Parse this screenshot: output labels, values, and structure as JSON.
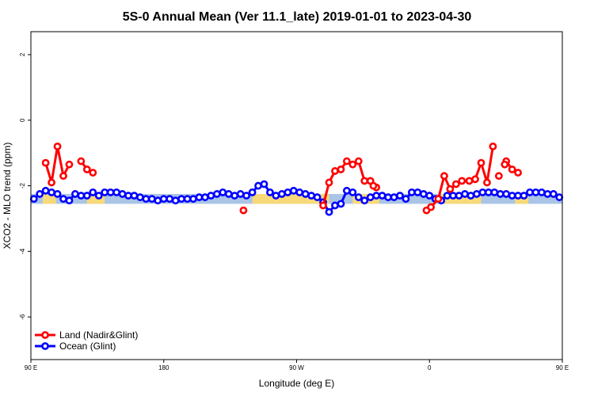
{
  "chart_data": {
    "type": "line",
    "title": "5S-0 Annual Mean (Ver 11.1_late)   2019-01-01 to 2023-04-30",
    "xlabel": "Longitude (deg E)",
    "ylabel": "XCO2 - MLO trend (ppm)",
    "xlim": [
      0,
      360
    ],
    "ylim": [
      -7.3,
      2.7
    ],
    "x_ticks": [
      {
        "value": 0,
        "label": "90 E"
      },
      {
        "value": 90,
        "label": "180"
      },
      {
        "value": 180,
        "label": "90 W"
      },
      {
        "value": 270,
        "label": "0"
      },
      {
        "value": 360,
        "label": "90 E"
      },
      {
        "value": 450,
        "label": "180"
      }
    ],
    "y_ticks": [
      {
        "value": 2,
        "label": "2"
      },
      {
        "value": 0,
        "label": "0"
      },
      {
        "value": -2,
        "label": "-2"
      },
      {
        "value": -4,
        "label": "-4"
      },
      {
        "value": -6,
        "label": "-6"
      }
    ],
    "legend": {
      "position": "bottom-left",
      "entries": [
        {
          "label": "Land (Nadir&Glint)",
          "color": "#ff0000"
        },
        {
          "label": "Ocean (Glint)",
          "color": "#0000ff"
        }
      ]
    },
    "band_colors": {
      "ocean": "#aac4e6",
      "land": "#f7d97a"
    },
    "band_ocean": {
      "y_range": [
        -2.55,
        -2.25
      ]
    },
    "band_land": [
      {
        "x_range": [
          8,
          17
        ],
        "y_range": [
          -2.55,
          -2.25
        ]
      },
      {
        "x_range": [
          38,
          50
        ],
        "y_range": [
          -2.55,
          -2.25
        ]
      },
      {
        "x_range": [
          150,
          202
        ],
        "y_range": [
          -2.55,
          -2.25
        ]
      },
      {
        "x_range": [
          218,
          236
        ],
        "y_range": [
          -2.55,
          -2.25
        ]
      },
      {
        "x_range": [
          278,
          305
        ],
        "y_range": [
          -2.55,
          -2.25
        ]
      },
      {
        "x_range": [
          297,
          304
        ],
        "y_range": [
          -2.55,
          -2.25
        ]
      },
      {
        "x_range": [
          328,
          337
        ],
        "y_range": [
          -2.55,
          -2.25
        ]
      }
    ],
    "series": [
      {
        "name": "Land (Nadir&Glint)",
        "color": "#ff0000",
        "segments": [
          {
            "x": [
              10,
              14,
              18,
              22,
              26
            ],
            "y": [
              -1.3,
              -1.9,
              -0.8,
              -1.7,
              -1.35
            ]
          },
          {
            "x": [
              34,
              38,
              42
            ],
            "y": [
              -1.25,
              -1.5,
              -1.6
            ]
          },
          {
            "x": [
              198,
              202,
              206,
              210,
              214,
              218,
              222,
              226,
              230,
              234
            ],
            "y": [
              -2.6,
              -1.9,
              -1.55,
              -1.5,
              -1.25,
              -1.35,
              -1.25,
              -1.85,
              -1.85,
              -2.05
            ]
          },
          {
            "x": [
              268,
              271,
              276,
              280,
              284,
              288,
              292
            ],
            "y": [
              -2.75,
              -2.65,
              -2.4,
              -1.7,
              -2.1,
              -1.95,
              -1.85
            ]
          },
          {
            "x": [
              297,
              301,
              305,
              309,
              313
            ],
            "y": [
              -1.85,
              -1.8,
              -1.3,
              -1.9,
              -0.8
            ]
          },
          {
            "x": [
              322,
              326,
              330
            ],
            "y": [
              -1.25,
              -1.5,
              -1.6
            ]
          }
        ],
        "isolated": [
          {
            "x": 144,
            "y": -2.75
          },
          {
            "x": 232,
            "y": -2.0
          },
          {
            "x": 317,
            "y": -1.7
          },
          {
            "x": 321,
            "y": -1.35
          }
        ]
      },
      {
        "name": "Ocean (Glint)",
        "color": "#0000ff",
        "x": [
          2,
          6,
          10,
          14,
          18,
          22,
          26,
          30,
          34,
          38,
          42,
          46,
          50,
          54,
          58,
          62,
          66,
          70,
          74,
          78,
          82,
          86,
          90,
          94,
          98,
          102,
          106,
          110,
          114,
          118,
          122,
          126,
          130,
          134,
          138,
          142,
          146,
          150,
          154,
          158,
          162,
          166,
          170,
          174,
          178,
          182,
          186,
          190,
          194,
          198,
          202,
          206,
          210,
          214,
          218,
          222,
          226,
          230,
          234,
          238,
          242,
          246,
          250,
          254,
          258,
          262,
          266,
          270,
          274,
          278,
          282,
          286,
          290,
          294,
          298,
          302,
          306,
          310,
          314,
          318,
          322,
          326,
          330,
          334,
          338,
          342,
          346,
          350,
          354,
          358
        ],
        "y": [
          -2.4,
          -2.25,
          -2.15,
          -2.2,
          -2.25,
          -2.4,
          -2.45,
          -2.25,
          -2.3,
          -2.3,
          -2.2,
          -2.3,
          -2.2,
          -2.2,
          -2.2,
          -2.25,
          -2.3,
          -2.3,
          -2.35,
          -2.4,
          -2.4,
          -2.45,
          -2.4,
          -2.4,
          -2.45,
          -2.4,
          -2.4,
          -2.4,
          -2.35,
          -2.35,
          -2.3,
          -2.25,
          -2.2,
          -2.25,
          -2.3,
          -2.25,
          -2.3,
          -2.2,
          -2.0,
          -1.95,
          -2.2,
          -2.3,
          -2.25,
          -2.2,
          -2.15,
          -2.2,
          -2.25,
          -2.3,
          -2.35,
          -2.5,
          -2.8,
          -2.6,
          -2.55,
          -2.15,
          -2.2,
          -2.35,
          -2.45,
          -2.35,
          -2.3,
          -2.3,
          -2.35,
          -2.35,
          -2.3,
          -2.4,
          -2.2,
          -2.2,
          -2.25,
          -2.3,
          -2.4,
          -2.45,
          -2.3,
          -2.3,
          -2.3,
          -2.25,
          -2.3,
          -2.25,
          -2.2,
          -2.2,
          -2.2,
          -2.25,
          -2.25,
          -2.3,
          -2.3,
          -2.3,
          -2.2,
          -2.2,
          -2.2,
          -2.25,
          -2.25,
          -2.35
        ]
      }
    ]
  }
}
